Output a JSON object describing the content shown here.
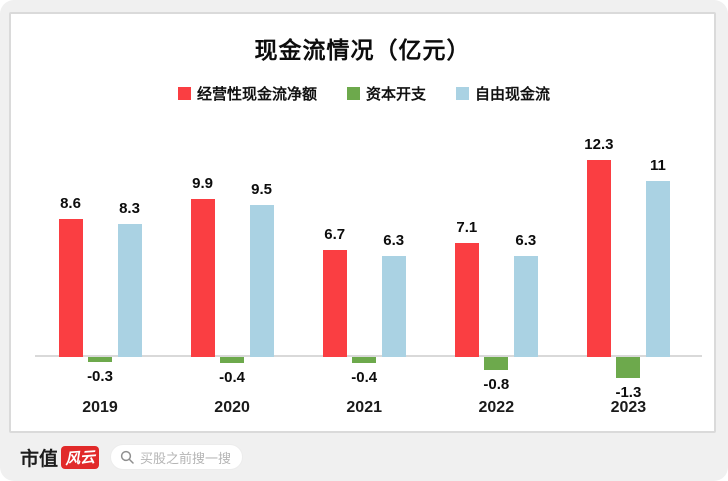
{
  "page": {
    "bg_color": "#f0f0f0",
    "card_bg": "#ffffff",
    "card_border": "#dadada"
  },
  "chart_data": {
    "type": "bar",
    "title": "现金流情况（亿元）",
    "categories": [
      "2019",
      "2020",
      "2021",
      "2022",
      "2023"
    ],
    "series": [
      {
        "name": "经营性现金流净额",
        "color": "#fa3e42",
        "values": [
          8.6,
          9.9,
          6.7,
          7.1,
          12.3
        ],
        "labels": [
          "8.6",
          "9.9",
          "6.7",
          "7.1",
          "12.3"
        ]
      },
      {
        "name": "资本开支",
        "color": "#6da94c",
        "values": [
          -0.3,
          -0.4,
          -0.4,
          -0.8,
          -1.3
        ],
        "labels": [
          "-0.3",
          "-0.4",
          "-0.4",
          "-0.8",
          "-1.3"
        ]
      },
      {
        "name": "自由现金流",
        "color": "#aad2e3",
        "values": [
          8.3,
          9.5,
          6.3,
          6.3,
          11
        ],
        "labels": [
          "8.3",
          "9.5",
          "6.3",
          "6.3",
          "11"
        ]
      }
    ],
    "legend_position": "top",
    "grid": false,
    "axis_line_color": "#d9d9d9",
    "label_color": "#0d0d0d",
    "ylim": [
      -2,
      14
    ]
  },
  "footer": {
    "brand_text": "市值",
    "brand_badge": "风云",
    "badge_color": "#e12a2a",
    "search_placeholder": "买股之前搜一搜"
  }
}
